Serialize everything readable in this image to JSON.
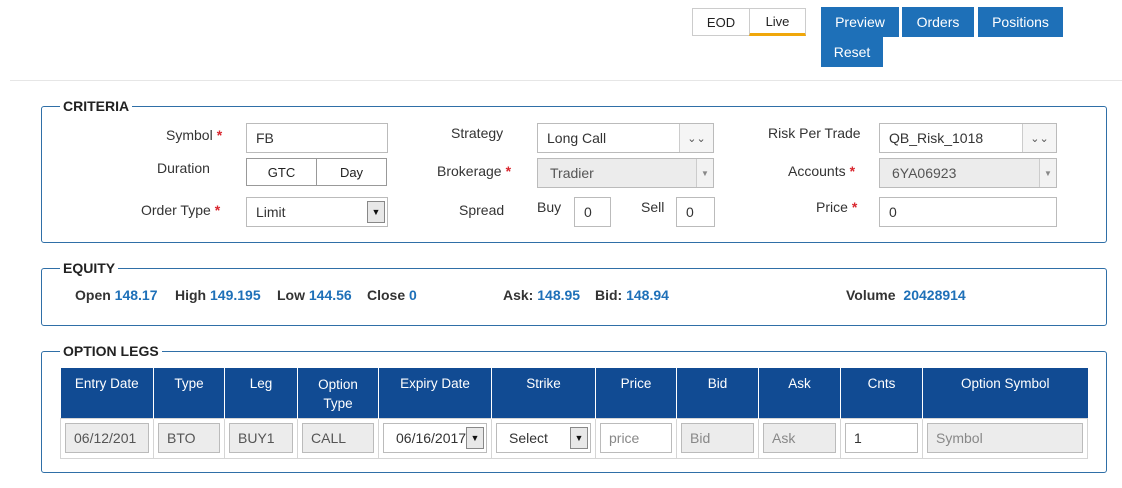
{
  "top": {
    "toggle": [
      "EOD",
      "Live"
    ],
    "toggle_selected": "Live",
    "buttons": [
      "Preview",
      "Orders",
      "Positions",
      "Reset"
    ]
  },
  "criteria": {
    "legend": "CRITERIA",
    "symbol_label": "Symbol",
    "symbol_value": "FB",
    "duration_label": "Duration",
    "duration_options": [
      "GTC",
      "Day"
    ],
    "duration_selected": "Day",
    "order_type_label": "Order Type",
    "order_type_value": "Limit",
    "strategy_label": "Strategy",
    "strategy_value": "Long Call",
    "brokerage_label": "Brokerage",
    "brokerage_value": "Tradier",
    "spread_label": "Spread",
    "buy_label": "Buy",
    "buy_value": "0",
    "sell_label": "Sell",
    "sell_value": "0",
    "risk_label": "Risk Per Trade",
    "risk_value": "QB_Risk_1018",
    "accounts_label": "Accounts",
    "accounts_value": "6YA06923",
    "price_label": "Price",
    "price_value": "0",
    "required_mark": "*"
  },
  "equity": {
    "legend": "EQUITY",
    "open_label": "Open",
    "open": "148.17",
    "high_label": "High",
    "high": "149.195",
    "low_label": "Low",
    "low": "144.56",
    "close_label": "Close",
    "close": "0",
    "ask_label": "Ask:",
    "ask": "148.95",
    "bid_label": "Bid:",
    "bid": "148.94",
    "volume_label": "Volume",
    "volume": "20428914"
  },
  "option_legs": {
    "legend": "OPTION LEGS",
    "headers": [
      "Entry Date",
      "Type",
      "Leg",
      "Option Type",
      "Expiry Date",
      "Strike",
      "Price",
      "Bid",
      "Ask",
      "Cnts",
      "Option Symbol"
    ],
    "row": {
      "entry_date": "06/12/201",
      "type": "BTO",
      "leg": "BUY1",
      "option_type": "CALL",
      "expiry_date": "06/16/2017",
      "strike": "Select",
      "price_placeholder": "price",
      "bid_placeholder": "Bid",
      "ask_placeholder": "Ask",
      "cnts": "1",
      "symbol_placeholder": "Symbol"
    }
  },
  "colors": {
    "primary": "#1e70b8",
    "header_bg": "#114b93",
    "accent": "#f0a70a",
    "required": "#d9262e",
    "panel_border": "#2f6fa7"
  }
}
